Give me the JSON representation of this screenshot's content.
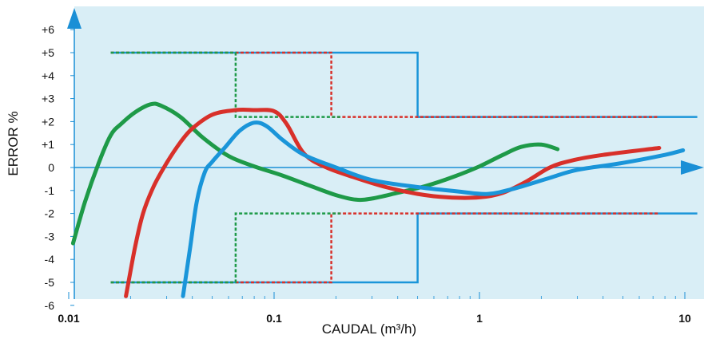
{
  "chart_data": {
    "type": "line",
    "xlabel": "CAUDAL (m³/h)",
    "ylabel": "ERROR  %",
    "x_scale": "log",
    "xlim": [
      0.0098,
      12
    ],
    "ylim": [
      -6.05,
      6.6
    ],
    "x_ticks": [
      {
        "value": 0.01,
        "label": "0.01"
      },
      {
        "value": 0.1,
        "label": "0.1"
      },
      {
        "value": 1,
        "label": "1"
      },
      {
        "value": 10,
        "label": "10"
      }
    ],
    "y_ticks": [
      {
        "value": 6,
        "label": "+6"
      },
      {
        "value": 5,
        "label": "+5"
      },
      {
        "value": 4,
        "label": "+4"
      },
      {
        "value": 3,
        "label": "+3"
      },
      {
        "value": 2,
        "label": "+2"
      },
      {
        "value": 1,
        "label": "+1"
      },
      {
        "value": 0,
        "label": "0"
      },
      {
        "value": -1,
        "label": "-1"
      },
      {
        "value": -2,
        "label": "-2"
      },
      {
        "value": -3,
        "label": "-3"
      },
      {
        "value": -4,
        "label": "-4"
      },
      {
        "value": -5,
        "label": "-5"
      },
      {
        "value": -6,
        "label": "-6"
      }
    ],
    "grid": false,
    "colors": {
      "background": "#d9eef6",
      "axis": "#1a8fd6",
      "blue": "#1a95d9",
      "red": "#d8302a",
      "green": "#1e9a48"
    },
    "limit_lines": [
      {
        "color": "blue",
        "style": "solid",
        "points": [
          [
            0.016,
            5
          ],
          [
            0.5,
            5
          ],
          [
            0.5,
            2.2
          ],
          [
            11.5,
            2.2
          ]
        ]
      },
      {
        "color": "blue",
        "style": "solid",
        "points": [
          [
            0.016,
            -5
          ],
          [
            0.5,
            -5
          ],
          [
            0.5,
            -2
          ],
          [
            11.5,
            -2
          ]
        ]
      },
      {
        "color": "red",
        "style": "dashed",
        "points": [
          [
            0.016,
            5
          ],
          [
            0.19,
            5
          ],
          [
            0.19,
            2.2
          ],
          [
            7.5,
            2.2
          ]
        ]
      },
      {
        "color": "red",
        "style": "dashed",
        "points": [
          [
            0.016,
            -5
          ],
          [
            0.19,
            -5
          ],
          [
            0.19,
            -2
          ],
          [
            7.5,
            -2
          ]
        ]
      },
      {
        "color": "green",
        "style": "dashed",
        "points": [
          [
            0.016,
            5
          ],
          [
            0.065,
            5
          ],
          [
            0.065,
            2.2
          ],
          [
            0.21,
            2.2
          ]
        ]
      },
      {
        "color": "green",
        "style": "dashed",
        "points": [
          [
            0.016,
            -5
          ],
          [
            0.065,
            -5
          ],
          [
            0.065,
            -2
          ],
          [
            0.21,
            -2
          ]
        ]
      }
    ],
    "series": [
      {
        "color": "green",
        "points": [
          [
            0.0105,
            -3.3
          ],
          [
            0.012,
            -1.5
          ],
          [
            0.014,
            0.2
          ],
          [
            0.016,
            1.4
          ],
          [
            0.018,
            1.9
          ],
          [
            0.021,
            2.4
          ],
          [
            0.025,
            2.75
          ],
          [
            0.028,
            2.7
          ],
          [
            0.035,
            2.2
          ],
          [
            0.045,
            1.3
          ],
          [
            0.06,
            0.5
          ],
          [
            0.08,
            0.05
          ],
          [
            0.11,
            -0.35
          ],
          [
            0.15,
            -0.8
          ],
          [
            0.2,
            -1.2
          ],
          [
            0.25,
            -1.4
          ],
          [
            0.3,
            -1.35
          ],
          [
            0.4,
            -1.1
          ],
          [
            0.55,
            -0.8
          ],
          [
            0.75,
            -0.4
          ],
          [
            1.0,
            0.05
          ],
          [
            1.3,
            0.55
          ],
          [
            1.6,
            0.9
          ],
          [
            2.0,
            1.0
          ],
          [
            2.4,
            0.8
          ]
        ]
      },
      {
        "color": "red",
        "points": [
          [
            0.019,
            -5.6
          ],
          [
            0.021,
            -3.5
          ],
          [
            0.023,
            -2
          ],
          [
            0.026,
            -0.8
          ],
          [
            0.03,
            0.2
          ],
          [
            0.035,
            1.1
          ],
          [
            0.04,
            1.7
          ],
          [
            0.05,
            2.3
          ],
          [
            0.065,
            2.5
          ],
          [
            0.08,
            2.5
          ],
          [
            0.1,
            2.45
          ],
          [
            0.115,
            1.9
          ],
          [
            0.14,
            0.6
          ],
          [
            0.18,
            0.0
          ],
          [
            0.25,
            -0.45
          ],
          [
            0.35,
            -0.85
          ],
          [
            0.5,
            -1.15
          ],
          [
            0.7,
            -1.3
          ],
          [
            1.0,
            -1.3
          ],
          [
            1.3,
            -1.1
          ],
          [
            1.7,
            -0.6
          ],
          [
            2.2,
            0.0
          ],
          [
            2.8,
            0.3
          ],
          [
            4.0,
            0.55
          ],
          [
            7.5,
            0.85
          ]
        ]
      },
      {
        "color": "blue",
        "points": [
          [
            0.036,
            -5.6
          ],
          [
            0.039,
            -3.5
          ],
          [
            0.042,
            -1.5
          ],
          [
            0.046,
            -0.2
          ],
          [
            0.05,
            0.25
          ],
          [
            0.058,
            0.9
          ],
          [
            0.068,
            1.6
          ],
          [
            0.08,
            1.95
          ],
          [
            0.092,
            1.8
          ],
          [
            0.11,
            1.2
          ],
          [
            0.14,
            0.55
          ],
          [
            0.2,
            0.0
          ],
          [
            0.3,
            -0.55
          ],
          [
            0.5,
            -0.85
          ],
          [
            0.8,
            -1.05
          ],
          [
            1.1,
            -1.15
          ],
          [
            1.5,
            -0.9
          ],
          [
            2.2,
            -0.45
          ],
          [
            3.0,
            -0.1
          ],
          [
            5.0,
            0.2
          ],
          [
            8.0,
            0.55
          ],
          [
            9.8,
            0.75
          ]
        ]
      }
    ]
  }
}
